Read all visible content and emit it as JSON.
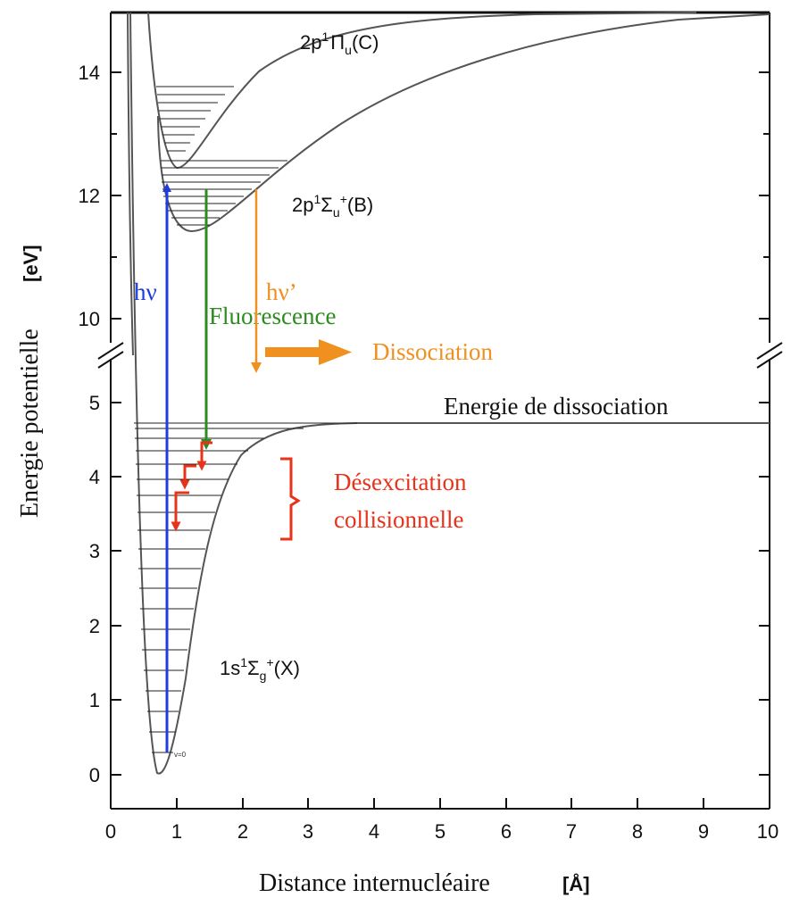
{
  "axes": {
    "xlabel": "Distance internucléaire",
    "xlabel_unit": "[Å]",
    "ylabel": "Energie potentielle",
    "ylabel_unit": "[eV]",
    "x_ticks": [
      "0",
      "1",
      "2",
      "3",
      "4",
      "5",
      "6",
      "7",
      "8",
      "9",
      "10"
    ],
    "y_ticks_upper": [
      "14",
      "12",
      "10"
    ],
    "y_ticks_lower": [
      "5",
      "4",
      "3",
      "2",
      "1",
      "0"
    ]
  },
  "states": {
    "C": {
      "main": "2p",
      "sup": "1",
      "sym": "Π",
      "sub": "u",
      "tail": "(C)"
    },
    "B": {
      "main": "2p",
      "sup": "1",
      "sym": "Σ",
      "sub": "u",
      "sup2": "+",
      "tail": "(B)"
    },
    "X": {
      "main": "1s",
      "sup": "1",
      "sym": "Σ",
      "sub": "g",
      "sup2": "+",
      "tail": "(X)"
    },
    "v0": "v=0"
  },
  "annotations": {
    "absorption": "hν",
    "emission": "hν’",
    "dissociation": "Dissociation",
    "fluorescence": "Fluorescence",
    "dissociation_energy": "Energie de dissociation",
    "desexcitation_1": "Désexcitation",
    "desexcitation_2": "collisionnelle"
  },
  "colors": {
    "absorption": "#1f3ce0",
    "fluorescence": "#2e8b1f",
    "emission": "#f0901f",
    "collisional": "#e8321a"
  }
}
